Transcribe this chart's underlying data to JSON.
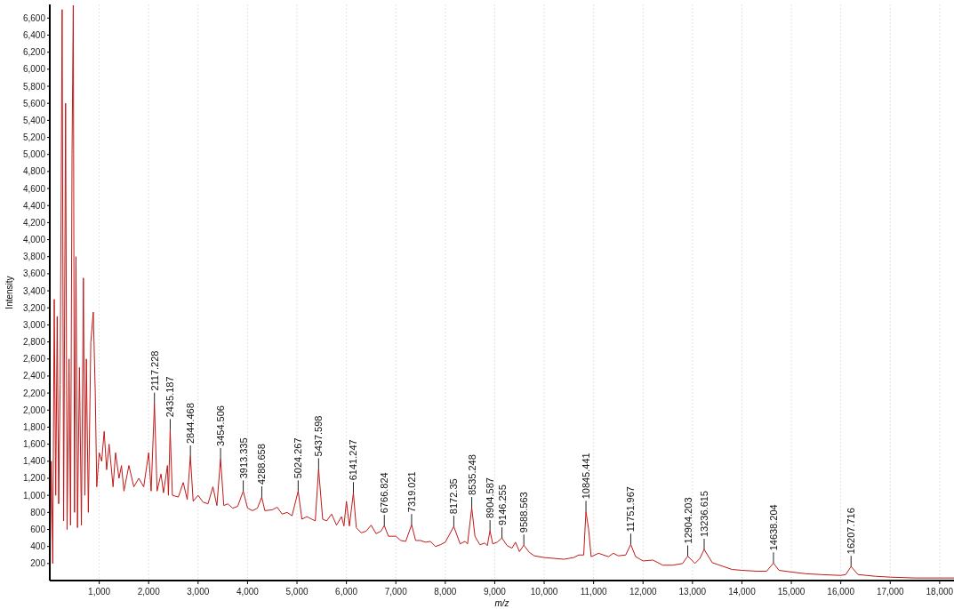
{
  "chart_data": {
    "type": "line",
    "xlabel": "m/z",
    "ylabel": "Intensity",
    "xlim": [
      0,
      18290
    ],
    "ylim": [
      0,
      6760
    ],
    "grid": "x",
    "marker": "none",
    "line_style": "solid",
    "xticks": [
      {
        "value": 1000,
        "label": "1,000"
      },
      {
        "value": 2000,
        "label": "2,000"
      },
      {
        "value": 3000,
        "label": "3,000"
      },
      {
        "value": 4000,
        "label": "4,000"
      },
      {
        "value": 5000,
        "label": "5,000"
      },
      {
        "value": 6000,
        "label": "6,000"
      },
      {
        "value": 7000,
        "label": "7,000"
      },
      {
        "value": 8000,
        "label": "8,000"
      },
      {
        "value": 9000,
        "label": "9,000"
      },
      {
        "value": 10000,
        "label": "10,000"
      },
      {
        "value": 11000,
        "label": "11,000"
      },
      {
        "value": 12000,
        "label": "12,000"
      },
      {
        "value": 13000,
        "label": "13,000"
      },
      {
        "value": 14000,
        "label": "14,000"
      },
      {
        "value": 15000,
        "label": "15,000"
      },
      {
        "value": 16000,
        "label": "16,000"
      },
      {
        "value": 17000,
        "label": "17,000"
      },
      {
        "value": 18000,
        "label": "18,000"
      }
    ],
    "yticks": [
      200,
      400,
      600,
      800,
      {
        "value": 1000,
        "label": "1,000"
      },
      {
        "value": 1200,
        "label": "1,200"
      },
      {
        "value": 1400,
        "label": "1,400"
      },
      {
        "value": 1600,
        "label": "1,600"
      },
      {
        "value": 1800,
        "label": "1,800"
      },
      {
        "value": 2000,
        "label": "2,000"
      },
      {
        "value": 2200,
        "label": "2,200"
      },
      {
        "value": 2400,
        "label": "2,400"
      },
      {
        "value": 2600,
        "label": "2,600"
      },
      {
        "value": 2800,
        "label": "2,800"
      },
      {
        "value": 3000,
        "label": "3,000"
      },
      {
        "value": 3200,
        "label": "3,200"
      },
      {
        "value": 3400,
        "label": "3,400"
      },
      {
        "value": 3600,
        "label": "3,600"
      },
      {
        "value": 3800,
        "label": "3,800"
      },
      {
        "value": 4000,
        "label": "4,000"
      },
      {
        "value": 4200,
        "label": "4,200"
      },
      {
        "value": 4400,
        "label": "4,400"
      },
      {
        "value": 4600,
        "label": "4,600"
      },
      {
        "value": 4800,
        "label": "4,800"
      },
      {
        "value": 5000,
        "label": "5,000"
      },
      {
        "value": 5200,
        "label": "5,200"
      },
      {
        "value": 5400,
        "label": "5,400"
      },
      {
        "value": 5600,
        "label": "5,600"
      },
      {
        "value": 5800,
        "label": "5,800"
      },
      {
        "value": 6000,
        "label": "6,000"
      },
      {
        "value": 6200,
        "label": "6,200"
      },
      {
        "value": 6400,
        "label": "6,400"
      },
      {
        "value": 6600,
        "label": "6,600"
      }
    ],
    "series": [
      {
        "color": "#c01818",
        "x": [
          0,
          30,
          60,
          90,
          120,
          150,
          180,
          210,
          250,
          280,
          320,
          350,
          390,
          420,
          450,
          475,
          500,
          530,
          560,
          600,
          640,
          680,
          710,
          740,
          780,
          830,
          880,
          920,
          950,
          1000,
          1050,
          1100,
          1150,
          1200,
          1280,
          1330,
          1400,
          1450,
          1500,
          1600,
          1700,
          1800,
          1900,
          2000,
          2050,
          2117,
          2170,
          2250,
          2300,
          2380,
          2400,
          2435,
          2480,
          2600,
          2700,
          2780,
          2844,
          2900,
          3000,
          3100,
          3200,
          3300,
          3380,
          3454,
          3520,
          3600,
          3700,
          3800,
          3913,
          4000,
          4100,
          4200,
          4288,
          4350,
          4500,
          4600,
          4700,
          4800,
          4900,
          5024,
          5100,
          5200,
          5300,
          5370,
          5437,
          5520,
          5600,
          5700,
          5800,
          5900,
          5950,
          6000,
          6060,
          6141,
          6200,
          6300,
          6400,
          6500,
          6600,
          6700,
          6766,
          6850,
          7000,
          7100,
          7200,
          7319,
          7400,
          7500,
          7600,
          7700,
          7800,
          7900,
          8000,
          8172,
          8300,
          8400,
          8450,
          8535,
          8600,
          8700,
          8800,
          8850,
          8904,
          8960,
          9050,
          9146,
          9250,
          9350,
          9420,
          9500,
          9588,
          9700,
          9800,
          10000,
          10200,
          10400,
          10600,
          10700,
          10800,
          10845,
          10900,
          10950,
          11100,
          11300,
          11400,
          11500,
          11650,
          11751,
          11850,
          12000,
          12200,
          12400,
          12600,
          12800,
          12904,
          13050,
          13150,
          13236,
          13400,
          13600,
          13800,
          14000,
          14300,
          14500,
          14638,
          14750,
          15000,
          15300,
          15600,
          16000,
          16100,
          16207,
          16350,
          16700,
          17000,
          17500,
          18000,
          18290
        ],
        "values": [
          0,
          1400,
          200,
          3300,
          1000,
          3100,
          900,
          2300,
          6700,
          700,
          5600,
          600,
          2600,
          650,
          5000,
          6750,
          800,
          3800,
          620,
          2500,
          650,
          3550,
          1000,
          2600,
          800,
          2800,
          3150,
          2200,
          1100,
          1500,
          1400,
          1750,
          1300,
          1600,
          1100,
          1500,
          1200,
          1350,
          1050,
          1350,
          1100,
          1200,
          1100,
          1500,
          1050,
          2080,
          1050,
          1250,
          1030,
          1350,
          1000,
          1770,
          1000,
          980,
          1150,
          950,
          1460,
          930,
          1000,
          920,
          900,
          1100,
          880,
          1430,
          880,
          900,
          850,
          870,
          1050,
          850,
          820,
          850,
          980,
          820,
          830,
          860,
          780,
          800,
          760,
          1050,
          720,
          750,
          720,
          700,
          1310,
          720,
          700,
          780,
          650,
          750,
          640,
          930,
          640,
          1030,
          620,
          560,
          580,
          650,
          550,
          580,
          645,
          520,
          520,
          470,
          460,
          655,
          470,
          470,
          450,
          460,
          400,
          420,
          450,
          635,
          430,
          460,
          430,
          855,
          520,
          420,
          440,
          410,
          584,
          430,
          450,
          500,
          410,
          380,
          450,
          340,
          415,
          330,
          290,
          270,
          260,
          250,
          270,
          300,
          300,
          810,
          600,
          280,
          320,
          280,
          320,
          290,
          300,
          425,
          280,
          230,
          240,
          180,
          180,
          200,
          287,
          200,
          260,
          365,
          210,
          170,
          130,
          120,
          110,
          110,
          205,
          120,
          100,
          80,
          70,
          60,
          70,
          165,
          70,
          50,
          40,
          30,
          30,
          30
        ]
      }
    ],
    "annotations": [
      {
        "text": "2117.228",
        "x": 2117.228,
        "y": 2080
      },
      {
        "text": "2435.187",
        "x": 2435.187,
        "y": 1770
      },
      {
        "text": "2844.468",
        "x": 2844.468,
        "y": 1460
      },
      {
        "text": "3454.506",
        "x": 3454.506,
        "y": 1430
      },
      {
        "text": "3913.335",
        "x": 3913.335,
        "y": 1050
      },
      {
        "text": "4288.658",
        "x": 4288.658,
        "y": 980
      },
      {
        "text": "5024.267",
        "x": 5024.267,
        "y": 1050
      },
      {
        "text": "5437.598",
        "x": 5437.598,
        "y": 1310
      },
      {
        "text": "6141.247",
        "x": 6141.247,
        "y": 1030
      },
      {
        "text": "6766.824",
        "x": 6766.824,
        "y": 645
      },
      {
        "text": "7319.021",
        "x": 7319.021,
        "y": 655
      },
      {
        "text": "8172.35",
        "x": 8172.35,
        "y": 635
      },
      {
        "text": "8535.248",
        "x": 8535.248,
        "y": 855
      },
      {
        "text": "8904.587",
        "x": 8904.587,
        "y": 584
      },
      {
        "text": "9146.255",
        "x": 9146.255,
        "y": 500
      },
      {
        "text": "9588.563",
        "x": 9588.563,
        "y": 415
      },
      {
        "text": "10845.441",
        "x": 10845.441,
        "y": 810
      },
      {
        "text": "11751.967",
        "x": 11751.967,
        "y": 425
      },
      {
        "text": "12904.203",
        "x": 12904.203,
        "y": 287
      },
      {
        "text": "13236.615",
        "x": 13236.615,
        "y": 365
      },
      {
        "text": "14638.204",
        "x": 14638.204,
        "y": 205
      },
      {
        "text": "16207.716",
        "x": 16207.716,
        "y": 165
      }
    ]
  }
}
